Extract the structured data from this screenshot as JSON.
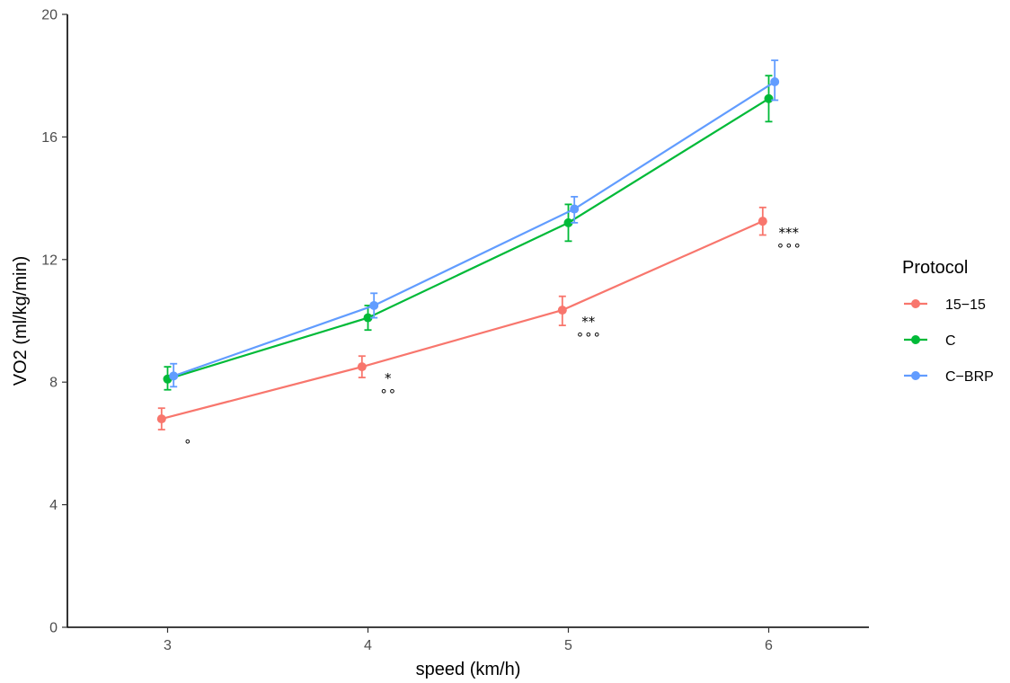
{
  "chart_data": {
    "type": "line",
    "xlabel": "speed (km/h)",
    "ylabel": "VO2 (ml/kg/min)",
    "x": [
      3,
      4,
      5,
      6
    ],
    "xlim": [
      2.5,
      6.5
    ],
    "ylim": [
      0,
      20
    ],
    "xticks": [
      "3",
      "4",
      "5",
      "6"
    ],
    "yticks": [
      "0",
      "4",
      "8",
      "12",
      "16",
      "20"
    ],
    "grid": false,
    "legend": {
      "title": "Protocol",
      "placement": "right"
    },
    "series": [
      {
        "name": "15−15",
        "color": "#F8766D",
        "values": [
          6.8,
          8.5,
          10.35,
          13.25
        ],
        "error_low": [
          6.45,
          8.15,
          9.85,
          12.8
        ],
        "error_high": [
          7.15,
          8.85,
          10.8,
          13.7
        ]
      },
      {
        "name": "C",
        "color": "#00BA38",
        "values": [
          8.1,
          10.1,
          13.2,
          17.25
        ],
        "error_low": [
          7.75,
          9.7,
          12.6,
          16.5
        ],
        "error_high": [
          8.5,
          10.5,
          13.8,
          18.0
        ]
      },
      {
        "name": "C−BRP",
        "color": "#619CFF",
        "values": [
          8.2,
          10.5,
          13.65,
          17.8
        ],
        "error_low": [
          7.85,
          10.1,
          13.2,
          17.2
        ],
        "error_high": [
          8.6,
          10.9,
          14.05,
          18.5
        ]
      }
    ],
    "annotations": [
      {
        "x": 3,
        "lines": [
          "∘"
        ]
      },
      {
        "x": 4,
        "lines": [
          "*",
          "∘∘"
        ]
      },
      {
        "x": 5,
        "lines": [
          "**",
          "∘∘∘"
        ]
      },
      {
        "x": 6,
        "lines": [
          "***",
          "∘∘∘"
        ]
      }
    ]
  }
}
